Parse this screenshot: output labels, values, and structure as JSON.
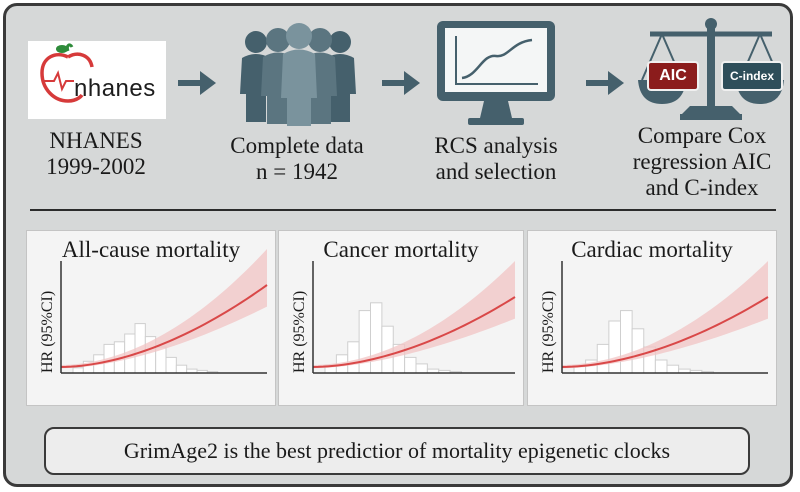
{
  "steps": [
    {
      "logo_text": "nhanes",
      "label_line1": "NHANES",
      "label_line2": "1999-2002"
    },
    {
      "label_line1": "Complete data",
      "label_line2": "n = 1942"
    },
    {
      "label_line1": "RCS analysis",
      "label_line2": "and selection"
    },
    {
      "label_line1": "Compare Cox",
      "label_line2": "regression AIC",
      "label_line3": "and C-index",
      "scale_left": "AIC",
      "scale_right": "C-index"
    }
  ],
  "panels": [
    {
      "title": "All-cause mortality",
      "ylabel": "HR (95%CI)"
    },
    {
      "title": "Cancer mortality",
      "ylabel": "HR (95%CI)"
    },
    {
      "title": "Cardiac mortality",
      "ylabel": "HR (95%CI)"
    }
  ],
  "conclusion": "GrimAge2 is the best predictior of mortality epigenetic clocks",
  "colors": {
    "icon": "#45606c",
    "curve": "#d94848",
    "band": "#f2c4c4",
    "background": "#d6d8d8"
  }
}
